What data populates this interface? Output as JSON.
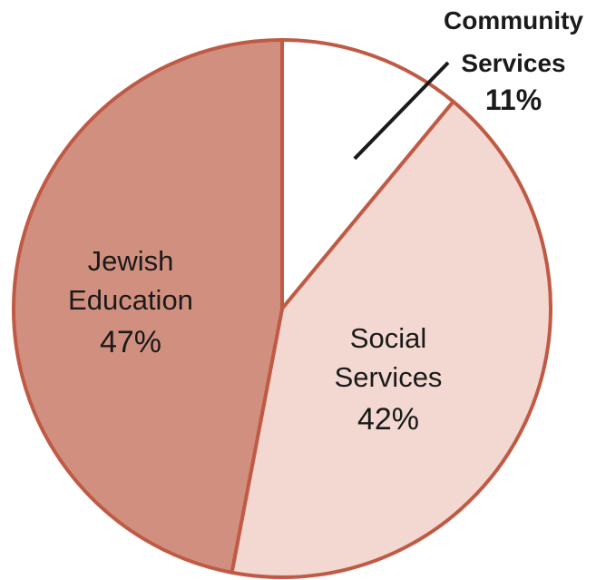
{
  "chart_data": {
    "type": "pie",
    "title": "",
    "slices": [
      {
        "label_lines": [
          "Community",
          "Services"
        ],
        "value": 11,
        "value_label": "11%",
        "color": "#ffffff"
      },
      {
        "label_lines": [
          "Social",
          "Services"
        ],
        "value": 42,
        "value_label": "42%",
        "color": "#f2d8d0"
      },
      {
        "label_lines": [
          "Jewish",
          "Education"
        ],
        "value": 47,
        "value_label": "47%",
        "color": "#d1907f"
      }
    ],
    "start_angle_deg": 0,
    "direction": "clockwise",
    "border_color": "#c05a45",
    "leader_color": "#1a1a1a"
  }
}
